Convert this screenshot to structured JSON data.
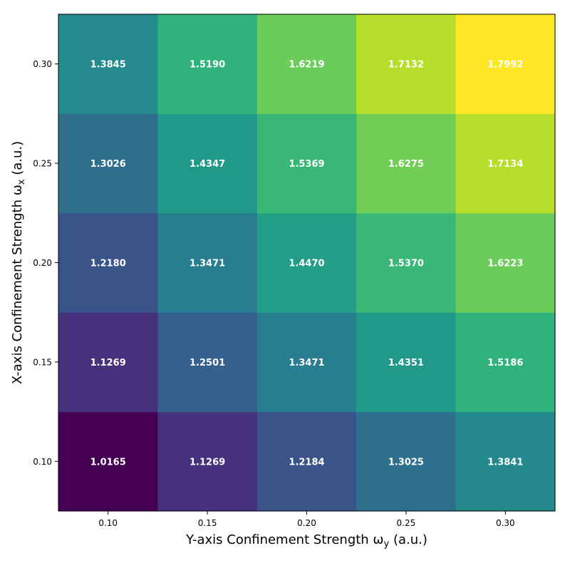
{
  "chart_data": {
    "type": "heatmap",
    "title": "",
    "xlabel_main": "Y-axis Confinement Strength ω",
    "xlabel_sub": "y",
    "xlabel_unit": " (a.u.)",
    "ylabel_main": "X-axis Confinement Strength ω",
    "ylabel_sub": "x",
    "ylabel_unit": " (a.u.)",
    "x_categories": [
      "0.10",
      "0.15",
      "0.20",
      "0.25",
      "0.30"
    ],
    "y_categories": [
      "0.10",
      "0.15",
      "0.20",
      "0.25",
      "0.30"
    ],
    "values": [
      [
        1.0165,
        1.1269,
        1.2184,
        1.3025,
        1.3841
      ],
      [
        1.1269,
        1.2501,
        1.3471,
        1.4351,
        1.5186
      ],
      [
        1.218,
        1.3471,
        1.447,
        1.537,
        1.6223
      ],
      [
        1.3026,
        1.4347,
        1.5369,
        1.6275,
        1.7134
      ],
      [
        1.3845,
        1.519,
        1.6219,
        1.7132,
        1.7992
      ]
    ],
    "cell_labels": [
      [
        "1.0165",
        "1.1269",
        "1.2184",
        "1.3025",
        "1.3841"
      ],
      [
        "1.1269",
        "1.2501",
        "1.3471",
        "1.4351",
        "1.5186"
      ],
      [
        "1.2180",
        "1.3471",
        "1.4470",
        "1.5370",
        "1.6223"
      ],
      [
        "1.3026",
        "1.4347",
        "1.5369",
        "1.6275",
        "1.7134"
      ],
      [
        "1.3845",
        "1.5190",
        "1.6219",
        "1.7132",
        "1.7992"
      ]
    ],
    "colormap": "viridis",
    "value_range": [
      1.0165,
      1.7992
    ],
    "grid": false,
    "legend": "none"
  }
}
